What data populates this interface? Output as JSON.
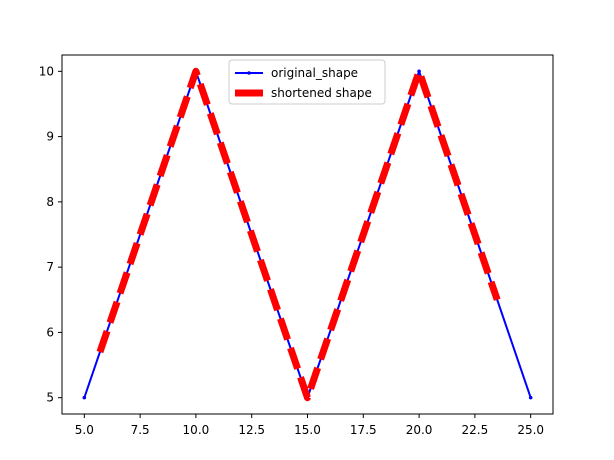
{
  "chart_data": {
    "type": "line",
    "title": "",
    "xlabel": "",
    "ylabel": "",
    "xlim": [
      4.0,
      26.0
    ],
    "ylim": [
      4.75,
      10.25
    ],
    "xticks": [
      "5.0",
      "7.5",
      "10.0",
      "12.5",
      "15.0",
      "17.5",
      "20.0",
      "22.5",
      "25.0"
    ],
    "yticks": [
      "5",
      "6",
      "7",
      "8",
      "9",
      "10"
    ],
    "grid": false,
    "legend_position": "top-center",
    "series": [
      {
        "name": "original_shape",
        "color": "#0000ff",
        "style": "solid",
        "marker": "dot",
        "x": [
          5,
          10,
          15,
          20,
          25
        ],
        "y": [
          5,
          10,
          5,
          10,
          5
        ]
      },
      {
        "name": "shortened shape",
        "color": "#ff0000",
        "style": "dashed",
        "marker": "none",
        "x": [
          5.7,
          10,
          15,
          20,
          23.5
        ],
        "y": [
          5.7,
          10,
          5,
          10,
          6.5
        ]
      }
    ]
  }
}
